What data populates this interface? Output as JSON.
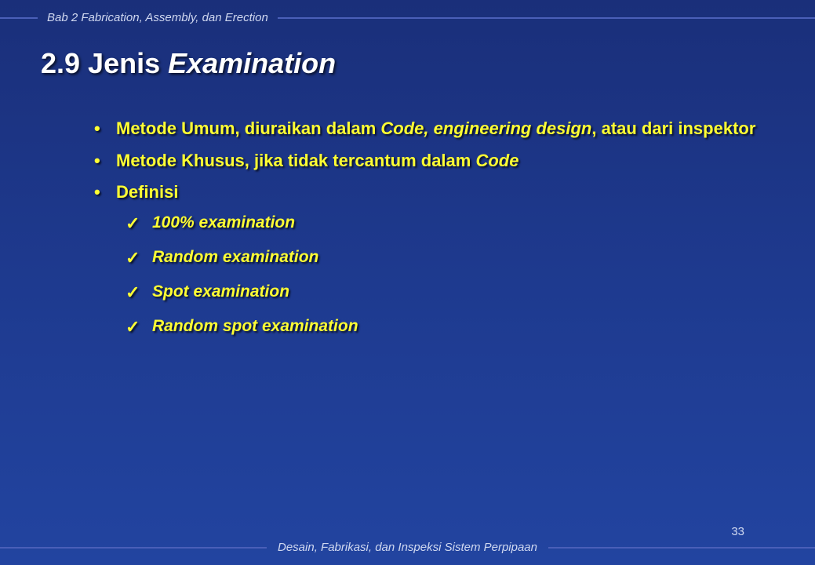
{
  "header": {
    "text": "Bab 2 Fabrication, Assembly, dan Erection"
  },
  "footer": {
    "text": "Desain, Fabrikasi, dan Inspeksi Sistem Perpipaan"
  },
  "page_number": "33",
  "title": {
    "prefix": "2.9  Jenis ",
    "italic": "Examination"
  },
  "bullets": [
    {
      "parts": [
        {
          "t": "Metode Umum, ",
          "i": false
        },
        {
          "t": "diuraikan dalam ",
          "i": false
        },
        {
          "t": "Code, engineering design",
          "i": true
        },
        {
          "t": ", ",
          "i": false
        },
        {
          "t": "atau dari inspektor",
          "i": false
        }
      ]
    },
    {
      "parts": [
        {
          "t": "Metode Khusus, ",
          "i": false
        },
        {
          "t": "jika tidak tercantum dalam ",
          "i": false
        },
        {
          "t": "Code",
          "i": true
        }
      ]
    },
    {
      "parts": [
        {
          "t": "Definisi",
          "i": false
        }
      ]
    }
  ],
  "checks": [
    "100% examination",
    "Random examination",
    "Spot examination",
    "Random spot examination"
  ],
  "colors": {
    "bg_top": "#1a2f7a",
    "bg_bottom": "#2244a0",
    "line": "#4a5fb8",
    "header_text": "#d0d8f0",
    "title": "#ffffff",
    "bullet_text": "#ffff33"
  }
}
